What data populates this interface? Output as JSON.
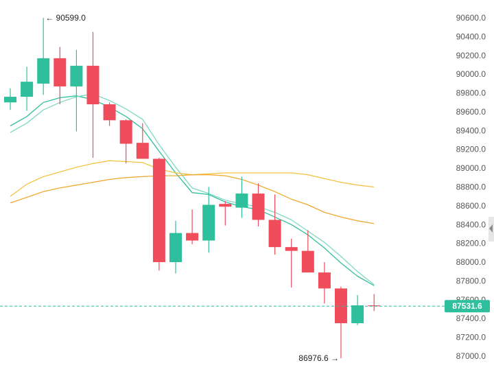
{
  "chart_data": {
    "type": "candlestick",
    "title": "",
    "xlabel": "",
    "ylabel": "",
    "ylim": [
      86950,
      90800
    ],
    "y_ticks": [
      {
        "value": 90600,
        "label": "90600.0"
      },
      {
        "value": 90400,
        "label": "90400.0"
      },
      {
        "value": 90200,
        "label": "90200.0"
      },
      {
        "value": 90000,
        "label": "90000.0"
      },
      {
        "value": 89800,
        "label": "89800.0"
      },
      {
        "value": 89600,
        "label": "89600.0"
      },
      {
        "value": 89400,
        "label": "89400.0"
      },
      {
        "value": 89200,
        "label": "89200.0"
      },
      {
        "value": 89000,
        "label": "89000.0"
      },
      {
        "value": 88800,
        "label": "88800.0"
      },
      {
        "value": 88600,
        "label": "88600.0"
      },
      {
        "value": 88400,
        "label": "88400.0"
      },
      {
        "value": 88200,
        "label": "88200.0"
      },
      {
        "value": 88000,
        "label": "88000.0"
      },
      {
        "value": 87800,
        "label": "87800.0"
      },
      {
        "value": 87600,
        "label": "87600.0"
      },
      {
        "value": 87400,
        "label": "87400.0"
      },
      {
        "value": 87200,
        "label": "87200.0"
      },
      {
        "value": 87000,
        "label": "87000.0"
      }
    ],
    "candles": [
      {
        "open": 89700,
        "high": 89850,
        "low": 89620,
        "close": 89760
      },
      {
        "open": 89760,
        "high": 90080,
        "low": 89610,
        "close": 89920
      },
      {
        "open": 89900,
        "high": 90599,
        "low": 89780,
        "close": 90170
      },
      {
        "open": 90170,
        "high": 90290,
        "low": 89680,
        "close": 89870
      },
      {
        "open": 89870,
        "high": 90260,
        "low": 89390,
        "close": 90090
      },
      {
        "open": 90090,
        "high": 90450,
        "low": 89110,
        "close": 89680
      },
      {
        "open": 89680,
        "high": 89700,
        "low": 89450,
        "close": 89510
      },
      {
        "open": 89510,
        "high": 89520,
        "low": 89050,
        "close": 89260
      },
      {
        "open": 89270,
        "high": 89480,
        "low": 89100,
        "close": 89100
      },
      {
        "open": 89100,
        "high": 89110,
        "low": 87910,
        "close": 88000
      },
      {
        "open": 88000,
        "high": 88440,
        "low": 87880,
        "close": 88310
      },
      {
        "open": 88310,
        "high": 88560,
        "low": 88190,
        "close": 88230
      },
      {
        "open": 88230,
        "high": 88800,
        "low": 88100,
        "close": 88610
      },
      {
        "open": 88620,
        "high": 88650,
        "low": 88390,
        "close": 88590
      },
      {
        "open": 88580,
        "high": 88910,
        "low": 88470,
        "close": 88730
      },
      {
        "open": 88730,
        "high": 88840,
        "low": 88380,
        "close": 88450
      },
      {
        "open": 88450,
        "high": 88720,
        "low": 88080,
        "close": 88160
      },
      {
        "open": 88160,
        "high": 88250,
        "low": 87730,
        "close": 88120
      },
      {
        "open": 88120,
        "high": 88340,
        "low": 87900,
        "close": 87890
      },
      {
        "open": 87890,
        "high": 88000,
        "low": 87560,
        "close": 87720
      },
      {
        "open": 87720,
        "high": 87740,
        "low": 86977,
        "close": 87350
      },
      {
        "open": 87350,
        "high": 87650,
        "low": 87330,
        "close": 87540
      },
      {
        "open": 87540,
        "high": 87660,
        "low": 87480,
        "close": 87532
      }
    ],
    "ma_lines": [
      {
        "color": "#2fbf9c",
        "values": [
          89450,
          89550,
          89700,
          89750,
          89770,
          89730,
          89650,
          89550,
          89420,
          89180,
          88950,
          88740,
          88720,
          88640,
          88590,
          88560,
          88480,
          88400,
          88290,
          88150,
          87990,
          87850,
          87750
        ]
      },
      {
        "color": "#7fd8c3",
        "values": [
          89380,
          89480,
          89620,
          89700,
          89760,
          89790,
          89720,
          89630,
          89520,
          89250,
          89010,
          88790,
          88730,
          88660,
          88620,
          88590,
          88530,
          88450,
          88330,
          88210,
          88060,
          87900,
          87760
        ]
      },
      {
        "color": "#f5c342",
        "values": [
          88700,
          88830,
          88910,
          88960,
          89010,
          89050,
          89080,
          89070,
          89060,
          88990,
          88950,
          88930,
          88940,
          88950,
          88950,
          88950,
          88950,
          88950,
          88930,
          88890,
          88850,
          88820,
          88800
        ]
      },
      {
        "color": "#f0a830",
        "values": [
          88630,
          88690,
          88750,
          88790,
          88820,
          88850,
          88880,
          88900,
          88910,
          88920,
          88920,
          88930,
          88930,
          88920,
          88880,
          88820,
          88750,
          88670,
          88610,
          88530,
          88480,
          88440,
          88410
        ]
      }
    ],
    "annotations": [
      {
        "text": "← 90599.0",
        "value": 90599.0,
        "candle": 2,
        "side": "right"
      },
      {
        "text": "86976.6 →",
        "value": 86976.6,
        "candle": 20,
        "side": "left"
      }
    ],
    "last_price": {
      "value": 87531.6,
      "label": "87531.6",
      "color": "#2fbf9c"
    },
    "colors": {
      "up": "#2fbf9c",
      "down": "#ef4d5c",
      "grid": "none"
    },
    "legend": "none"
  }
}
